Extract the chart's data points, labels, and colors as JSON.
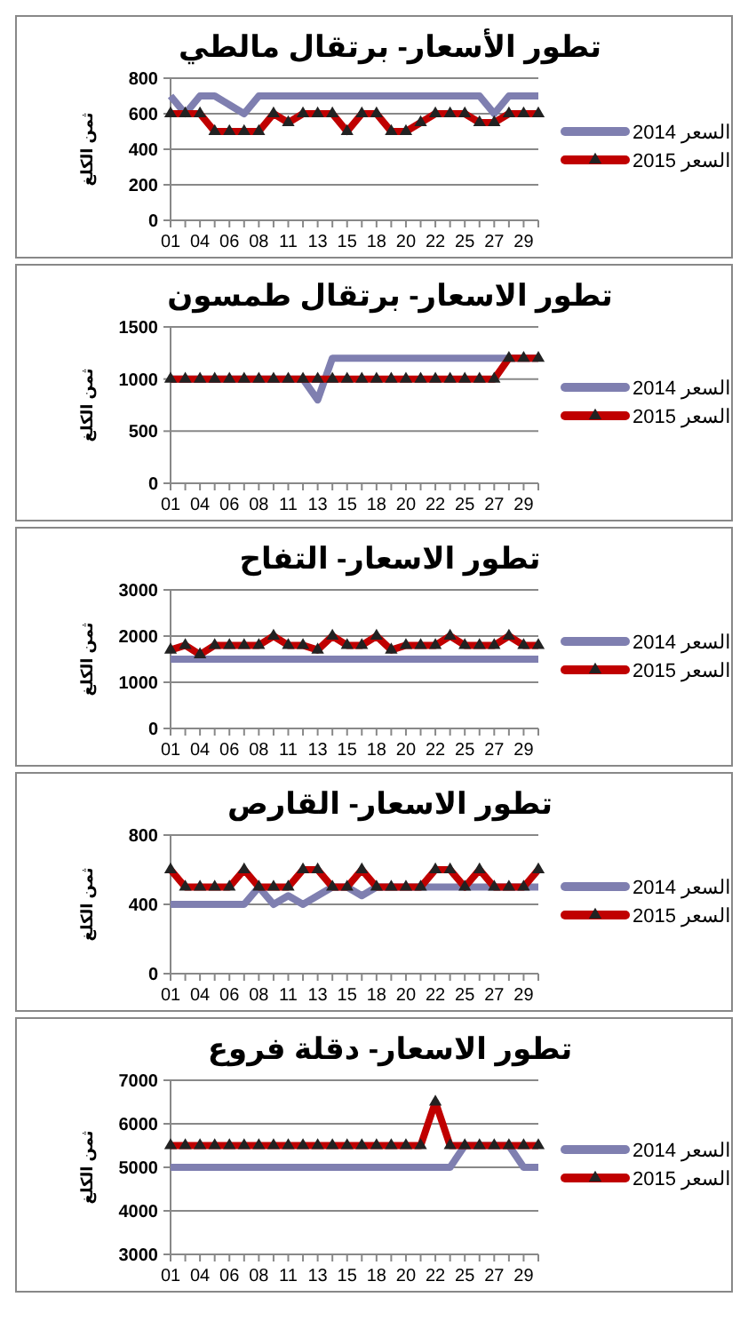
{
  "chart_data": [
    {
      "type": "line",
      "title": "تطور الأسعار- برتقال مالطي",
      "ylabel": "ثمن الكلغ",
      "categories": [
        "01",
        null,
        "04",
        null,
        "06",
        null,
        "08",
        null,
        "11",
        null,
        "13",
        null,
        "15",
        null,
        "18",
        null,
        "20",
        null,
        "22",
        null,
        "25",
        null,
        "27",
        null,
        "29",
        null
      ],
      "ylim": [
        0,
        800
      ],
      "yticks": [
        0,
        200,
        400,
        600,
        800
      ],
      "grid": "y",
      "legend": "right",
      "series": [
        {
          "name": "السعر 2014",
          "color": "#7f7fb0",
          "marker": "none",
          "values": [
            700,
            600,
            700,
            700,
            650,
            600,
            700,
            700,
            700,
            700,
            700,
            700,
            700,
            700,
            700,
            700,
            700,
            700,
            700,
            700,
            700,
            700,
            600,
            700,
            700,
            700
          ]
        },
        {
          "name": "السعر 2015",
          "color": "#c00000",
          "marker": "triangle",
          "values": [
            600,
            600,
            600,
            500,
            500,
            500,
            500,
            600,
            550,
            600,
            600,
            600,
            500,
            600,
            600,
            500,
            500,
            550,
            600,
            600,
            600,
            550,
            550,
            600,
            600,
            600
          ]
        }
      ]
    },
    {
      "type": "line",
      "title": "تطور الاسعار- برتقال طمسون",
      "ylabel": "ثمن الكلغ",
      "categories": [
        "01",
        null,
        "04",
        null,
        "06",
        null,
        "08",
        null,
        "11",
        null,
        "13",
        null,
        "15",
        null,
        "18",
        null,
        "20",
        null,
        "22",
        null,
        "25",
        null,
        "27",
        null,
        "29",
        null
      ],
      "ylim": [
        0,
        1500
      ],
      "yticks": [
        0,
        500,
        1000,
        1500
      ],
      "grid": "y",
      "legend": "right",
      "series": [
        {
          "name": "السعر 2014",
          "color": "#7f7fb0",
          "values": [
            1000,
            1000,
            1000,
            1000,
            1000,
            1000,
            1000,
            1000,
            1000,
            1000,
            800,
            1200,
            1200,
            1200,
            1200,
            1200,
            1200,
            1200,
            1200,
            1200,
            1200,
            1200,
            1200,
            1200,
            1200,
            1200
          ]
        },
        {
          "name": "السعر 2015",
          "color": "#c00000",
          "marker": "triangle",
          "values": [
            1000,
            1000,
            1000,
            1000,
            1000,
            1000,
            1000,
            1000,
            1000,
            1000,
            1000,
            1000,
            1000,
            1000,
            1000,
            1000,
            1000,
            1000,
            1000,
            1000,
            1000,
            1000,
            1000,
            1200,
            1200,
            1200
          ]
        }
      ]
    },
    {
      "type": "line",
      "title": "تطور الاسعار- التفاح",
      "ylabel": "ثمن الكلغ",
      "categories": [
        "01",
        null,
        "04",
        null,
        "06",
        null,
        "08",
        null,
        "11",
        null,
        "13",
        null,
        "15",
        null,
        "18",
        null,
        "20",
        null,
        "22",
        null,
        "25",
        null,
        "27",
        null,
        "29",
        null
      ],
      "ylim": [
        0,
        3000
      ],
      "yticks": [
        0,
        1000,
        2000,
        3000
      ],
      "grid": "y",
      "legend": "right",
      "series": [
        {
          "name": "السعر 2014",
          "color": "#7f7fb0",
          "marker": "none",
          "values": [
            1500,
            1500,
            1500,
            1500,
            1500,
            1500,
            1500,
            1500,
            1500,
            1500,
            1500,
            1500,
            1500,
            1500,
            1500,
            1500,
            1500,
            1500,
            1500,
            1500,
            1500,
            1500,
            1500,
            1500,
            1500,
            1500
          ]
        },
        {
          "name": "السعر 2015",
          "color": "#c00000",
          "marker": "triangle",
          "values": [
            1700,
            1800,
            1600,
            1800,
            1800,
            1800,
            1800,
            2000,
            1800,
            1800,
            1700,
            2000,
            1800,
            1800,
            2000,
            1700,
            1800,
            1800,
            1800,
            2000,
            1800,
            1800,
            1800,
            2000,
            1800,
            1800
          ]
        }
      ]
    },
    {
      "type": "line",
      "title": "تطور الاسعار- القارص",
      "ylabel": "ثمن الكلغ",
      "categories": [
        "01",
        null,
        "04",
        null,
        "06",
        null,
        "08",
        null,
        "11",
        null,
        "13",
        null,
        "15",
        null,
        "18",
        null,
        "20",
        null,
        "22",
        null,
        "25",
        null,
        "27",
        null,
        "29",
        null
      ],
      "ylim": [
        0,
        800
      ],
      "yticks": [
        0,
        400,
        800
      ],
      "grid": "y",
      "legend": "right",
      "series": [
        {
          "name": "السعر 2014",
          "color": "#7f7fb0",
          "marker": "none",
          "values": [
            400,
            400,
            400,
            400,
            400,
            400,
            500,
            400,
            450,
            400,
            450,
            500,
            500,
            450,
            500,
            500,
            500,
            500,
            500,
            500,
            500,
            500,
            500,
            500,
            500,
            500
          ]
        },
        {
          "name": "السعر 2015",
          "color": "#c00000",
          "marker": "triangle",
          "values": [
            600,
            500,
            500,
            500,
            500,
            600,
            500,
            500,
            500,
            600,
            600,
            500,
            500,
            600,
            500,
            500,
            500,
            500,
            600,
            600,
            500,
            600,
            500,
            500,
            500,
            600
          ]
        }
      ]
    },
    {
      "type": "line",
      "title": "تطور الاسعار- دقلة فروع",
      "ylabel": "ثمن الكلغ",
      "categories": [
        "01",
        null,
        "04",
        null,
        "06",
        null,
        "08",
        null,
        "11",
        null,
        "13",
        null,
        "15",
        null,
        "18",
        null,
        "20",
        null,
        "22",
        null,
        "25",
        null,
        "27",
        null,
        "29",
        null
      ],
      "ylim": [
        3000,
        7000
      ],
      "yticks": [
        3000,
        4000,
        5000,
        6000,
        7000
      ],
      "grid": "y",
      "legend": "right",
      "series": [
        {
          "name": "السعر 2014",
          "color": "#7f7fb0",
          "marker": "none",
          "values": [
            5000,
            5000,
            5000,
            5000,
            5000,
            5000,
            5000,
            5000,
            5000,
            5000,
            5000,
            5000,
            5000,
            5000,
            5000,
            5000,
            5000,
            5000,
            5000,
            5000,
            5500,
            5500,
            5500,
            5500,
            5000,
            5000
          ]
        },
        {
          "name": "السعر 2015",
          "color": "#c00000",
          "marker": "triangle",
          "values": [
            5500,
            5500,
            5500,
            5500,
            5500,
            5500,
            5500,
            5500,
            5500,
            5500,
            5500,
            5500,
            5500,
            5500,
            5500,
            5500,
            5500,
            5500,
            6500,
            5500,
            5500,
            5500,
            5500,
            5500,
            5500,
            5500
          ]
        }
      ]
    }
  ]
}
